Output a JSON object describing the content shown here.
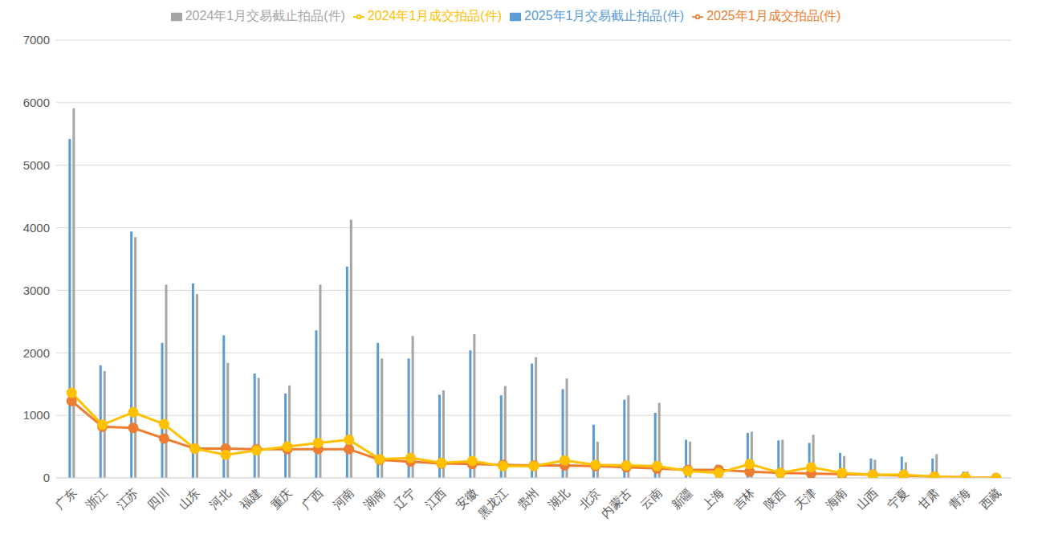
{
  "chart_data": {
    "type": "bar",
    "categories": [
      "广东",
      "浙江",
      "江苏",
      "四川",
      "山东",
      "河北",
      "福建",
      "重庆",
      "广西",
      "河南",
      "湖南",
      "辽宁",
      "江西",
      "安徽",
      "黑龙江",
      "贵州",
      "湖北",
      "北京",
      "内蒙古",
      "云南",
      "新疆",
      "上海",
      "吉林",
      "陕西",
      "天津",
      "海南",
      "山西",
      "宁夏",
      "甘肃",
      "青海",
      "西藏"
    ],
    "series": [
      {
        "name": "2025年1月交易截止拍品(件)",
        "type": "bar",
        "color": "#5b9bd5",
        "values": [
          5420,
          1800,
          3940,
          2160,
          3110,
          2280,
          1670,
          1350,
          2360,
          3380,
          2160,
          1910,
          1330,
          2040,
          1320,
          1830,
          1420,
          850,
          1250,
          1040,
          610,
          210,
          720,
          600,
          560,
          400,
          310,
          340,
          310,
          100,
          0
        ]
      },
      {
        "name": "2024年1月交易截止拍品(件)",
        "type": "bar",
        "color": "#a5a5a5",
        "values": [
          5910,
          1710,
          3850,
          3090,
          2940,
          1840,
          1600,
          1480,
          3090,
          4130,
          1910,
          2270,
          1400,
          2300,
          1470,
          1930,
          1590,
          580,
          1320,
          1200,
          580,
          190,
          740,
          610,
          690,
          350,
          290,
          250,
          380,
          100,
          0
        ]
      },
      {
        "name": "2025年1月成交拍品(件)",
        "type": "line",
        "color": "#ed7d31",
        "marker": "circle",
        "values": [
          1230,
          820,
          800,
          630,
          470,
          470,
          460,
          460,
          460,
          460,
          290,
          260,
          230,
          220,
          210,
          200,
          200,
          190,
          170,
          150,
          130,
          130,
          100,
          80,
          70,
          60,
          50,
          40,
          20,
          10,
          0
        ]
      },
      {
        "name": "2024年1月成交拍品(件)",
        "type": "line",
        "color": "#ffc000",
        "marker": "circle",
        "values": [
          1360,
          850,
          1050,
          860,
          470,
          370,
          440,
          500,
          560,
          610,
          300,
          320,
          240,
          270,
          190,
          190,
          280,
          210,
          200,
          190,
          110,
          80,
          220,
          80,
          170,
          80,
          50,
          50,
          20,
          10,
          0
        ]
      }
    ],
    "ylim": [
      0,
      7000
    ],
    "yticks": [
      0,
      1000,
      2000,
      3000,
      4000,
      5000,
      6000,
      7000
    ],
    "grid": true,
    "legend": "top"
  }
}
